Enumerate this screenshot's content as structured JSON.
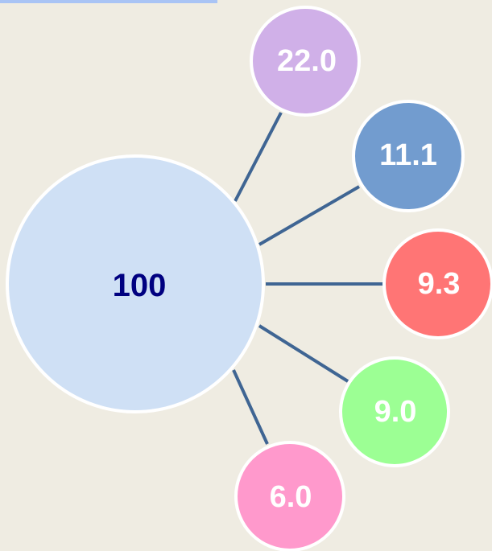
{
  "center": {
    "label": "100"
  },
  "nodes": [
    {
      "label": "22.0"
    },
    {
      "label": "11.1"
    },
    {
      "label": "9.3"
    },
    {
      "label": "9.0"
    },
    {
      "label": "6.0"
    }
  ]
}
